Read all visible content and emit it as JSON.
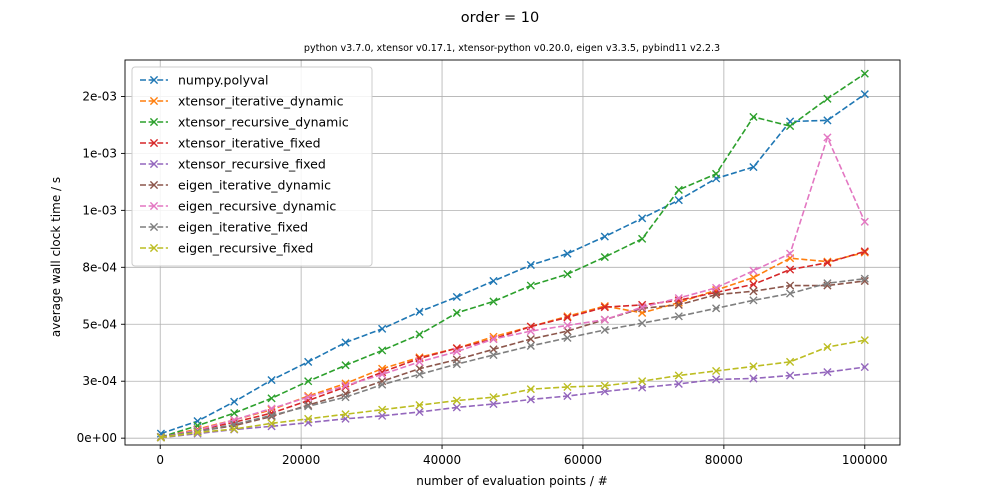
{
  "chart_data": {
    "type": "line",
    "title": "order = 10",
    "subtitle": "python v3.7.0, xtensor v0.17.1, xtensor-python v0.20.0, eigen v3.3.5, pybind11 v2.2.3",
    "xlabel": "number of evaluation points / #",
    "ylabel": "average wall clock time / s",
    "xlim": [
      -5000,
      105000
    ],
    "ylim": [
      -3e-05,
      0.00166
    ],
    "grid": true,
    "legend_position": "top-left",
    "marker": "x",
    "line_style": "dashed",
    "x_ticks": [
      0,
      20000,
      40000,
      60000,
      80000,
      100000
    ],
    "x_tick_labels": [
      "0",
      "20000",
      "40000",
      "60000",
      "80000",
      "100000"
    ],
    "y_ticks": [
      0,
      0.00025,
      0.0005,
      0.00075,
      0.001,
      0.00125,
      0.0015
    ],
    "y_tick_labels": [
      "0e+00",
      "3e-04",
      "5e-04",
      "8e-04",
      "1e-03",
      "1e-03",
      "2e-03"
    ],
    "x": [
      100,
      5300,
      10500,
      15800,
      21000,
      26300,
      31500,
      36800,
      42100,
      47300,
      52600,
      57800,
      63100,
      68400,
      73600,
      78900,
      84200,
      89400,
      94700,
      100000
    ],
    "series": [
      {
        "name": "numpy.polyval",
        "color": "#1f77b4",
        "values": [
          2e-05,
          7.5e-05,
          0.00016,
          0.000255,
          0.000335,
          0.00042,
          0.00048,
          0.000555,
          0.00062,
          0.00069,
          0.00076,
          0.00081,
          0.000885,
          0.000965,
          0.001045,
          0.00114,
          0.00119,
          0.00139,
          0.001395,
          0.00151
        ]
      },
      {
        "name": "xtensor_iterative_dynamic",
        "color": "#ff7f0e",
        "values": [
          5e-06,
          4e-05,
          8e-05,
          0.000125,
          0.000185,
          0.00024,
          0.000305,
          0.000355,
          0.000395,
          0.000445,
          0.00049,
          0.000535,
          0.00058,
          0.00055,
          0.000595,
          0.00065,
          0.000705,
          0.00079,
          0.000775,
          0.000815
        ]
      },
      {
        "name": "xtensor_recursive_dynamic",
        "color": "#2ca02c",
        "values": [
          5e-06,
          5.5e-05,
          0.00011,
          0.000175,
          0.00025,
          0.00032,
          0.000385,
          0.000455,
          0.00055,
          0.0006,
          0.00067,
          0.00072,
          0.000795,
          0.000875,
          0.00109,
          0.00116,
          0.00141,
          0.00137,
          0.00149,
          0.0016
        ]
      },
      {
        "name": "xtensor_iterative_fixed",
        "color": "#d62728",
        "values": [
          5e-06,
          3.5e-05,
          7e-05,
          0.00011,
          0.000165,
          0.000225,
          0.00029,
          0.00035,
          0.000395,
          0.000435,
          0.00049,
          0.00053,
          0.000575,
          0.000585,
          0.000605,
          0.00064,
          0.000675,
          0.00074,
          0.00077,
          0.00082
        ]
      },
      {
        "name": "xtensor_recursive_fixed",
        "color": "#9467bd",
        "values": [
          2e-06,
          2e-05,
          3.8e-05,
          5.2e-05,
          6.8e-05,
          8.5e-05,
          9.8e-05,
          0.000115,
          0.000135,
          0.00015,
          0.00017,
          0.000185,
          0.000205,
          0.000222,
          0.000238,
          0.000258,
          0.000262,
          0.000275,
          0.00029,
          0.000312
        ]
      },
      {
        "name": "eigen_iterative_dynamic",
        "color": "#8c564b",
        "values": [
          5e-06,
          3e-05,
          5.5e-05,
          9.5e-05,
          0.000145,
          0.000195,
          0.00025,
          0.000305,
          0.000345,
          0.00039,
          0.000435,
          0.00047,
          0.00052,
          0.00057,
          0.000585,
          0.00063,
          0.000645,
          0.00067,
          0.00067,
          0.00069
        ]
      },
      {
        "name": "eigen_recursive_dynamic",
        "color": "#e377c2",
        "values": [
          5e-06,
          3.5e-05,
          8e-05,
          0.00013,
          0.00018,
          0.00023,
          0.00028,
          0.000335,
          0.00038,
          0.000435,
          0.00047,
          0.000495,
          0.00052,
          0.000575,
          0.000615,
          0.00066,
          0.000735,
          0.00081,
          0.00132,
          0.00095
        ]
      },
      {
        "name": "eigen_iterative_fixed",
        "color": "#7f7f7f",
        "values": [
          5e-06,
          3e-05,
          6e-05,
          0.0001,
          0.00014,
          0.00018,
          0.000235,
          0.00028,
          0.000325,
          0.000365,
          0.000405,
          0.00044,
          0.000475,
          0.000505,
          0.000535,
          0.00057,
          0.000605,
          0.000635,
          0.00068,
          0.0007
        ]
      },
      {
        "name": "eigen_recursive_fixed",
        "color": "#bcbd22",
        "values": [
          3e-06,
          2.5e-05,
          4e-05,
          6.5e-05,
          8.5e-05,
          0.000105,
          0.000125,
          0.000145,
          0.000165,
          0.00018,
          0.000215,
          0.000225,
          0.00023,
          0.00025,
          0.000275,
          0.000295,
          0.000315,
          0.000335,
          0.0004,
          0.00043
        ]
      }
    ]
  }
}
